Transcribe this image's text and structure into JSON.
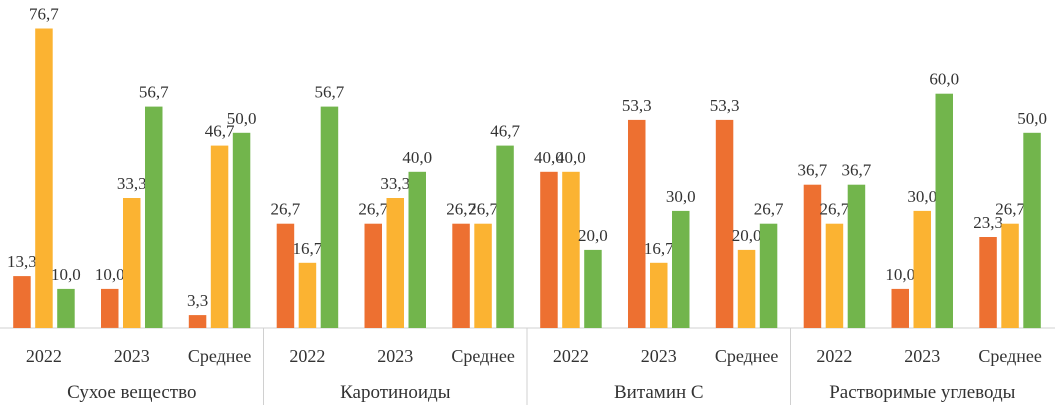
{
  "chart_data": {
    "type": "bar",
    "title": "",
    "xlabel": "",
    "ylabel": "",
    "ylim": [
      0,
      80
    ],
    "grid": false,
    "legend": "none",
    "groups": [
      "Сухое вещество",
      "Каротиноиды",
      "Витамин С",
      "Растворимые углеводы"
    ],
    "categories": [
      "2022",
      "2023",
      "Среднее"
    ],
    "series": [
      {
        "name": "series-1",
        "color": "#ED7031",
        "values": [
          [
            13.3,
            10.0,
            3.3
          ],
          [
            26.7,
            26.7,
            26.7
          ],
          [
            40.0,
            53.3,
            53.3
          ],
          [
            36.7,
            10.0,
            23.3
          ]
        ]
      },
      {
        "name": "series-2",
        "color": "#FBB332",
        "values": [
          [
            76.7,
            33.3,
            46.7
          ],
          [
            16.7,
            33.3,
            26.7
          ],
          [
            40.0,
            16.7,
            20.0
          ],
          [
            26.7,
            30.0,
            26.7
          ]
        ]
      },
      {
        "name": "series-3",
        "color": "#72B54C",
        "values": [
          [
            10.0,
            56.7,
            50.0
          ],
          [
            56.7,
            40.0,
            46.7
          ],
          [
            20.0,
            30.0,
            26.7
          ],
          [
            36.7,
            60.0,
            50.0
          ]
        ]
      }
    ],
    "labels": [
      [
        [
          "13,3",
          "76,7",
          "10,0"
        ],
        [
          "10,0",
          "33,3",
          "56,7"
        ],
        [
          "3,3",
          "46,7",
          "50,0"
        ]
      ],
      [
        [
          "26,7",
          "16,7",
          "56,7"
        ],
        [
          "26,7",
          "33,3",
          "40,0"
        ],
        [
          "26,7",
          "26,7",
          "46,7"
        ]
      ],
      [
        [
          "40,0",
          "40,0",
          "20,0"
        ],
        [
          "53,3",
          "16,7",
          "30,0"
        ],
        [
          "53,3",
          "20,0",
          "26,7"
        ]
      ],
      [
        [
          "36,7",
          "26,7",
          "36,7"
        ],
        [
          "10,0",
          "30,0",
          "60,0"
        ],
        [
          "23,3",
          "26,7",
          "50,0"
        ]
      ]
    ]
  }
}
